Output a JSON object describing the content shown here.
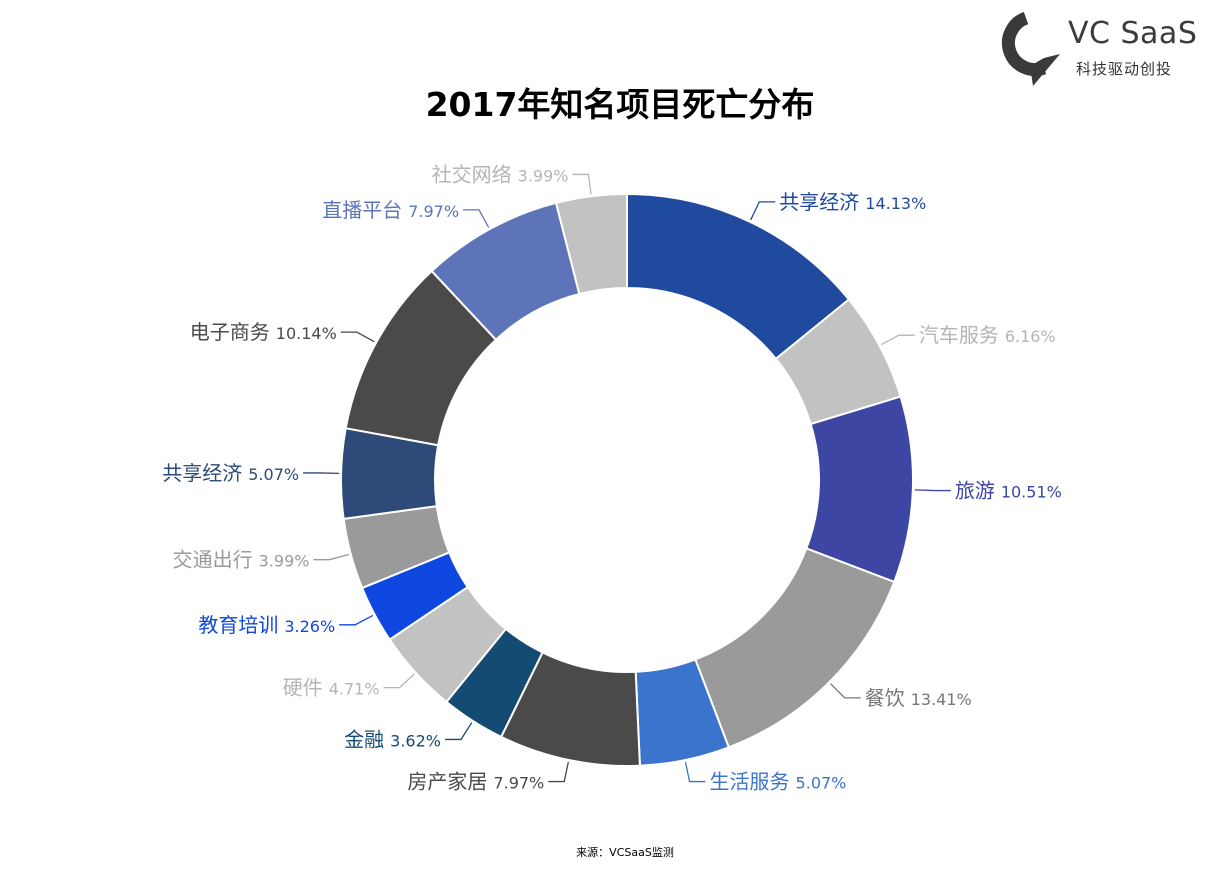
{
  "logo": {
    "brand": "VC SaaS",
    "tagline": "科技驱动创投",
    "colors": {
      "mark": "#3a3a3a",
      "text": "#3b3b3b"
    }
  },
  "source": "来源：VCSaaS监测",
  "chart_data": {
    "type": "pie",
    "variant": "donut",
    "title": "2017年知名项目死亡分布",
    "legend": "none",
    "start_angle_deg": 0,
    "direction": "clockwise",
    "slices": [
      {
        "label": "共享经济",
        "value": 14.13,
        "value_label": "14.13%",
        "color": "#1f4a9e",
        "label_color": "#1f4a9e"
      },
      {
        "label": "汽车服务",
        "value": 6.16,
        "value_label": "6.16%",
        "color": "#c2c2c2",
        "label_color": "#b5b5b5"
      },
      {
        "label": "旅游",
        "value": 10.51,
        "value_label": "10.51%",
        "color": "#3d47a3",
        "label_color": "#3d47a3"
      },
      {
        "label": "餐饮",
        "value": 13.41,
        "value_label": "13.41%",
        "color": "#9a9a9a",
        "label_color": "#777777"
      },
      {
        "label": "生活服务",
        "value": 5.07,
        "value_label": "5.07%",
        "color": "#3b74cc",
        "label_color": "#3b74cc"
      },
      {
        "label": "房产家居",
        "value": 7.97,
        "value_label": "7.97%",
        "color": "#4a4a4a",
        "label_color": "#4a4a4a"
      },
      {
        "label": "金融",
        "value": 3.62,
        "value_label": "3.62%",
        "color": "#134b72",
        "label_color": "#134b72"
      },
      {
        "label": "硬件",
        "value": 4.71,
        "value_label": "4.71%",
        "color": "#c2c2c2",
        "label_color": "#b5b5b5"
      },
      {
        "label": "教育培训",
        "value": 3.26,
        "value_label": "3.26%",
        "color": "#0d47e0",
        "label_color": "#0d47e0"
      },
      {
        "label": "交通出行",
        "value": 3.99,
        "value_label": "3.99%",
        "color": "#9a9a9a",
        "label_color": "#9a9a9a"
      },
      {
        "label": "共享经济",
        "value": 5.07,
        "value_label": "5.07%",
        "color": "#2e4a78",
        "label_color": "#2e4a78"
      },
      {
        "label": "电子商务",
        "value": 10.14,
        "value_label": "10.14%",
        "color": "#4a4a4a",
        "label_color": "#4a4a4a"
      },
      {
        "label": "直播平台",
        "value": 7.97,
        "value_label": "7.97%",
        "color": "#5e74b8",
        "label_color": "#5e74b8"
      },
      {
        "label": "社交网络",
        "value": 3.99,
        "value_label": "3.99%",
        "color": "#c2c2c2",
        "label_color": "#b5b5b5"
      }
    ]
  }
}
